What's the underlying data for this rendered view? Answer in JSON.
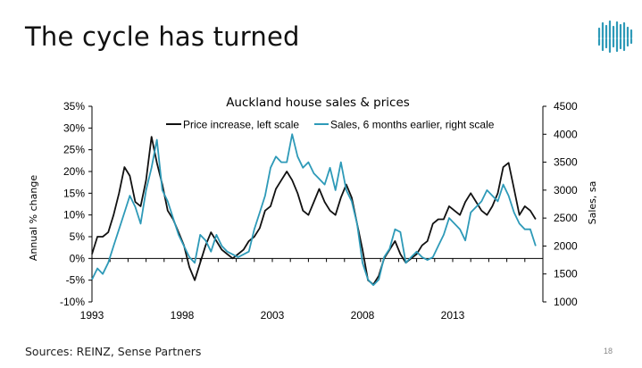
{
  "slide": {
    "title": "The cycle has turned",
    "sources": "Sources: REINZ, Sense Partners",
    "page_number": "18"
  },
  "colors": {
    "price_line": "#111111",
    "sales_line": "#2e9ab8",
    "logo": "#2e9ab8"
  },
  "logo": {
    "icon": "wave-bars-logo-icon"
  },
  "chart_data": {
    "type": "line",
    "title": "Auckland house sales & prices",
    "ylabel_left": "Annual % change",
    "ylabel_right": "Sales, sa",
    "x_ticks": [
      "1993",
      "1998",
      "2003",
      "2008",
      "2013"
    ],
    "x_tick_values": [
      1993,
      1998,
      2003,
      2008,
      2013
    ],
    "xlim": [
      1993,
      2018
    ],
    "ylim_left": [
      -10,
      35
    ],
    "ylim_right": [
      1000,
      4500
    ],
    "left_ticks": [
      "-10%",
      "-5%",
      "0%",
      "5%",
      "10%",
      "15%",
      "20%",
      "25%",
      "30%",
      "35%"
    ],
    "left_tick_values": [
      -10,
      -5,
      0,
      5,
      10,
      15,
      20,
      25,
      30,
      35
    ],
    "right_ticks": [
      "1000",
      "1500",
      "2000",
      "2500",
      "3000",
      "3500",
      "4000",
      "4500"
    ],
    "right_tick_values": [
      1000,
      1500,
      2000,
      2500,
      3000,
      3500,
      4000,
      4500
    ],
    "grid": false,
    "legend": "top",
    "series": [
      {
        "name": "Price increase, left scale",
        "axis": "left",
        "color": "#111111",
        "x": [
          1993.0,
          1993.3,
          1993.6,
          1993.9,
          1994.2,
          1994.5,
          1994.8,
          1995.1,
          1995.4,
          1995.7,
          1996.0,
          1996.3,
          1996.6,
          1996.9,
          1997.2,
          1997.5,
          1997.8,
          1998.1,
          1998.4,
          1998.7,
          1999.0,
          1999.3,
          1999.6,
          1999.9,
          2000.2,
          2000.5,
          2000.8,
          2001.1,
          2001.4,
          2001.7,
          2002.0,
          2002.3,
          2002.6,
          2002.9,
          2003.2,
          2003.5,
          2003.8,
          2004.1,
          2004.4,
          2004.7,
          2005.0,
          2005.3,
          2005.6,
          2005.9,
          2006.2,
          2006.5,
          2006.8,
          2007.1,
          2007.4,
          2007.7,
          2008.0,
          2008.3,
          2008.6,
          2008.9,
          2009.2,
          2009.5,
          2009.8,
          2010.1,
          2010.4,
          2010.7,
          2011.0,
          2011.3,
          2011.6,
          2011.9,
          2012.2,
          2012.5,
          2012.8,
          2013.1,
          2013.4,
          2013.7,
          2014.0,
          2014.3,
          2014.6,
          2014.9,
          2015.2,
          2015.5,
          2015.8,
          2016.1,
          2016.4,
          2016.7,
          2017.0,
          2017.3,
          2017.6
        ],
        "values": [
          1,
          5,
          5,
          6,
          10,
          15,
          21,
          19,
          13,
          12,
          18,
          28,
          22,
          17,
          11,
          9,
          6,
          3,
          -2,
          -5,
          -1,
          3,
          6,
          4,
          2,
          1,
          0,
          1,
          2,
          4,
          5,
          7,
          11,
          12,
          16,
          18,
          20,
          18,
          15,
          11,
          10,
          13,
          16,
          13,
          11,
          10,
          14,
          17,
          14,
          8,
          2,
          -5,
          -6,
          -4,
          0,
          2,
          4,
          1,
          -1,
          0,
          1,
          3,
          4,
          8,
          9,
          9,
          12,
          11,
          10,
          13,
          15,
          13,
          11,
          10,
          12,
          15,
          21,
          22,
          16,
          10,
          12,
          11,
          9
        ]
      },
      {
        "name": "Sales, 6 months earlier, right scale",
        "axis": "right",
        "color": "#2e9ab8",
        "x": [
          1993.0,
          1993.3,
          1993.6,
          1993.9,
          1994.2,
          1994.5,
          1994.8,
          1995.1,
          1995.4,
          1995.7,
          1996.0,
          1996.3,
          1996.6,
          1996.9,
          1997.2,
          1997.5,
          1997.8,
          1998.1,
          1998.4,
          1998.7,
          1999.0,
          1999.3,
          1999.6,
          1999.9,
          2000.2,
          2000.5,
          2000.8,
          2001.1,
          2001.4,
          2001.7,
          2002.0,
          2002.3,
          2002.6,
          2002.9,
          2003.2,
          2003.5,
          2003.8,
          2004.1,
          2004.4,
          2004.7,
          2005.0,
          2005.3,
          2005.6,
          2005.9,
          2006.2,
          2006.5,
          2006.8,
          2007.1,
          2007.4,
          2007.7,
          2008.0,
          2008.3,
          2008.6,
          2008.9,
          2009.2,
          2009.5,
          2009.8,
          2010.1,
          2010.4,
          2010.7,
          2011.0,
          2011.3,
          2011.6,
          2011.9,
          2012.2,
          2012.5,
          2012.8,
          2013.1,
          2013.4,
          2013.7,
          2014.0,
          2014.3,
          2014.6,
          2014.9,
          2015.2,
          2015.5,
          2015.8,
          2016.1,
          2016.4,
          2016.7,
          2017.0,
          2017.3,
          2017.6
        ],
        "values": [
          1400,
          1600,
          1500,
          1700,
          2000,
          2300,
          2600,
          2900,
          2700,
          2400,
          3000,
          3400,
          3900,
          3000,
          2800,
          2500,
          2200,
          2000,
          1800,
          1700,
          2200,
          2100,
          1900,
          2200,
          2000,
          1900,
          1850,
          1800,
          1850,
          1900,
          2300,
          2600,
          2900,
          3400,
          3600,
          3500,
          3500,
          4000,
          3600,
          3400,
          3500,
          3300,
          3200,
          3100,
          3400,
          3000,
          3500,
          3000,
          2800,
          2400,
          1700,
          1400,
          1300,
          1400,
          1800,
          1950,
          2300,
          2250,
          1700,
          1800,
          1900,
          1800,
          1750,
          1800,
          2000,
          2200,
          2500,
          2400,
          2300,
          2100,
          2600,
          2700,
          2800,
          3000,
          2900,
          2800,
          3100,
          2900,
          2600,
          2400,
          2300,
          2300,
          2000
        ]
      }
    ]
  }
}
